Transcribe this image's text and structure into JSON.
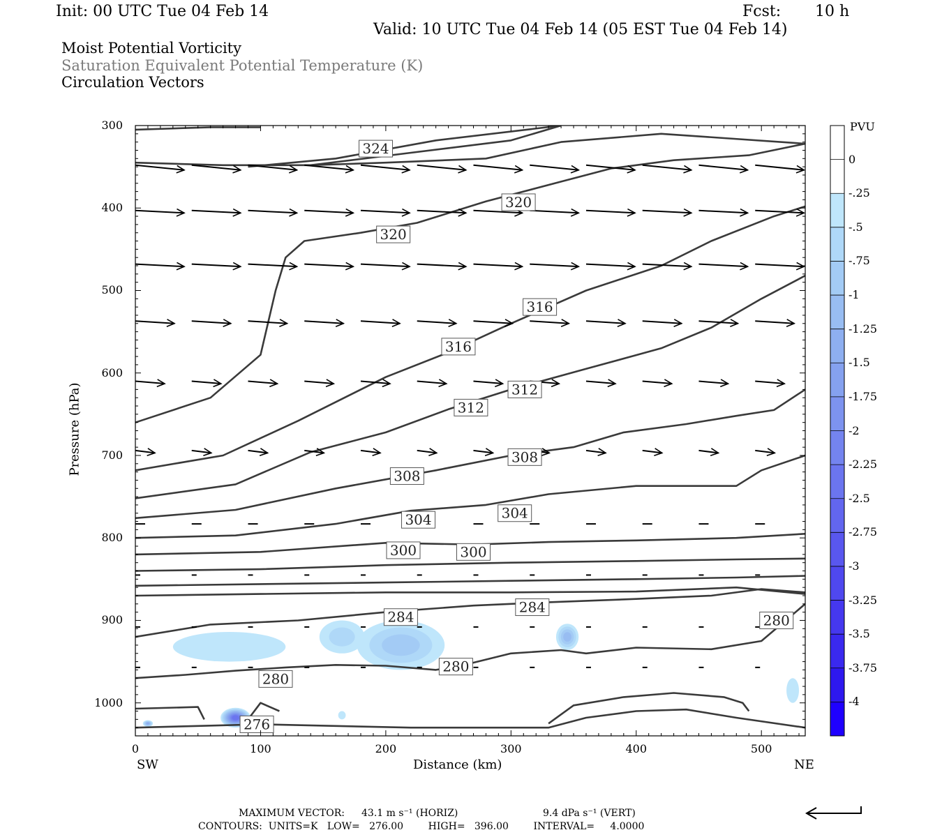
{
  "header": {
    "init": "Init: 00 UTC Tue 04 Feb 14",
    "fcst_label": "Fcst:",
    "fcst_value": "10 h",
    "valid": "Valid: 10 UTC Tue 04 Feb 14 (05 EST Tue 04 Feb 14)"
  },
  "fields": [
    "Moist Potential Vorticity",
    "Saturation Equivalent Potential Temperature (K)",
    "Circulation Vectors"
  ],
  "colors": {
    "contour": "#3a3a3a",
    "vector": "#000000",
    "field_gray": "#7a7a7a"
  },
  "chart_data": {
    "type": "cross-section",
    "xlabel": "Distance (km)",
    "ylabel": "Pressure (hPa)",
    "xlim": [
      0,
      535
    ],
    "ylim": [
      1040,
      300
    ],
    "x_ticks": [
      0,
      100,
      200,
      300,
      400,
      500
    ],
    "y_ticks": [
      300,
      400,
      500,
      600,
      700,
      800,
      900,
      1000
    ],
    "x_end_labels": [
      "SW",
      "NE"
    ],
    "colorbar": {
      "unit": "PVU",
      "levels": [
        "0",
        "-.25",
        "-.5",
        "-.75",
        "-1",
        "-1.25",
        "-1.5",
        "-1.75",
        "-2",
        "-2.25",
        "-2.5",
        "-2.75",
        "-3",
        "-3.25",
        "-3.5",
        "-3.75",
        "-4"
      ],
      "colors": [
        "#ffffff",
        "#ffffff",
        "#bfe6fb",
        "#afd8f8",
        "#a3cbf5",
        "#98bdf2",
        "#8eaff0",
        "#85a1ef",
        "#7d93ef",
        "#7484ef",
        "#6b75ef",
        "#6266ef",
        "#5957ef",
        "#4f48ef",
        "#4538ef",
        "#3a29ef",
        "#2e18ef",
        "#1f00ff"
      ]
    },
    "contour_labels": [
      {
        "text": "324",
        "x": 192,
        "p": 328
      },
      {
        "text": "320",
        "x": 306,
        "p": 393
      },
      {
        "text": "320",
        "x": 206,
        "p": 432
      },
      {
        "text": "316",
        "x": 323,
        "p": 520
      },
      {
        "text": "316",
        "x": 258,
        "p": 568
      },
      {
        "text": "312",
        "x": 311,
        "p": 620
      },
      {
        "text": "312",
        "x": 268,
        "p": 642
      },
      {
        "text": "308",
        "x": 311,
        "p": 702
      },
      {
        "text": "308",
        "x": 217,
        "p": 725
      },
      {
        "text": "304",
        "x": 303,
        "p": 770
      },
      {
        "text": "304",
        "x": 226,
        "p": 778
      },
      {
        "text": "300",
        "x": 214,
        "p": 815
      },
      {
        "text": "300",
        "x": 270,
        "p": 817
      },
      {
        "text": "284",
        "x": 317,
        "p": 884
      },
      {
        "text": "284",
        "x": 212,
        "p": 896
      },
      {
        "text": "280",
        "x": 512,
        "p": 900
      },
      {
        "text": "280",
        "x": 256,
        "p": 956
      },
      {
        "text": "280",
        "x": 112,
        "p": 971
      },
      {
        "text": "276",
        "x": 97,
        "p": 1026
      }
    ],
    "contours": [
      [
        [
          0,
          345
        ],
        [
          70,
          348
        ],
        [
          140,
          348
        ],
        [
          220,
          333
        ],
        [
          300,
          318
        ],
        [
          340,
          300
        ]
      ],
      [
        [
          90,
          350
        ],
        [
          160,
          340
        ],
        [
          240,
          318
        ],
        [
          340,
          300
        ]
      ],
      [
        [
          140,
          348
        ],
        [
          200,
          345
        ],
        [
          280,
          340
        ],
        [
          340,
          320
        ],
        [
          420,
          310
        ],
        [
          535,
          322
        ]
      ],
      [
        [
          0,
          305
        ],
        [
          60,
          302
        ],
        [
          100,
          302
        ]
      ],
      [
        [
          0,
          660
        ],
        [
          60,
          630
        ],
        [
          100,
          578
        ],
        [
          112,
          500
        ],
        [
          120,
          460
        ],
        [
          135,
          440
        ],
        [
          180,
          430
        ],
        [
          225,
          418
        ],
        [
          280,
          392
        ],
        [
          340,
          368
        ],
        [
          380,
          352
        ],
        [
          430,
          342
        ],
        [
          490,
          336
        ],
        [
          535,
          322
        ]
      ],
      [
        [
          0,
          718
        ],
        [
          70,
          700
        ],
        [
          130,
          658
        ],
        [
          200,
          605
        ],
        [
          250,
          575
        ],
        [
          300,
          540
        ],
        [
          360,
          500
        ],
        [
          420,
          470
        ],
        [
          460,
          440
        ],
        [
          510,
          410
        ],
        [
          535,
          398
        ]
      ],
      [
        [
          0,
          752
        ],
        [
          80,
          735
        ],
        [
          140,
          696
        ],
        [
          200,
          672
        ],
        [
          250,
          644
        ],
        [
          300,
          620
        ],
        [
          360,
          595
        ],
        [
          420,
          570
        ],
        [
          460,
          545
        ],
        [
          500,
          510
        ],
        [
          535,
          482
        ]
      ],
      [
        [
          0,
          776
        ],
        [
          80,
          766
        ],
        [
          160,
          740
        ],
        [
          240,
          718
        ],
        [
          300,
          700
        ],
        [
          350,
          690
        ],
        [
          390,
          672
        ],
        [
          440,
          662
        ],
        [
          480,
          652
        ],
        [
          510,
          645
        ],
        [
          535,
          620
        ]
      ],
      [
        [
          0,
          800
        ],
        [
          80,
          797
        ],
        [
          160,
          783
        ],
        [
          220,
          767
        ],
        [
          280,
          760
        ],
        [
          330,
          747
        ],
        [
          400,
          737
        ],
        [
          480,
          737
        ],
        [
          500,
          718
        ],
        [
          535,
          700
        ]
      ],
      [
        [
          0,
          820
        ],
        [
          100,
          817
        ],
        [
          200,
          806
        ],
        [
          270,
          808
        ],
        [
          330,
          805
        ],
        [
          400,
          803
        ],
        [
          480,
          800
        ],
        [
          535,
          795
        ]
      ],
      [
        [
          0,
          840
        ],
        [
          100,
          838
        ],
        [
          200,
          833
        ],
        [
          300,
          830
        ],
        [
          400,
          828
        ],
        [
          480,
          826
        ],
        [
          535,
          825
        ]
      ],
      [
        [
          0,
          858
        ],
        [
          100,
          856
        ],
        [
          200,
          854
        ],
        [
          300,
          852
        ],
        [
          400,
          850
        ],
        [
          480,
          848
        ],
        [
          535,
          846
        ]
      ],
      [
        [
          0,
          870
        ],
        [
          100,
          868
        ],
        [
          200,
          866
        ],
        [
          300,
          866
        ],
        [
          400,
          865
        ],
        [
          480,
          860
        ],
        [
          535,
          868
        ]
      ],
      [
        [
          0,
          920
        ],
        [
          60,
          905
        ],
        [
          130,
          900
        ],
        [
          200,
          890
        ],
        [
          270,
          882
        ],
        [
          330,
          878
        ],
        [
          400,
          874
        ],
        [
          460,
          870
        ],
        [
          500,
          862
        ],
        [
          535,
          866
        ]
      ],
      [
        [
          0,
          970
        ],
        [
          40,
          966
        ],
        [
          80,
          961
        ],
        [
          120,
          957
        ],
        [
          160,
          954
        ],
        [
          200,
          955
        ],
        [
          240,
          960
        ],
        [
          260,
          955
        ],
        [
          300,
          940
        ],
        [
          340,
          936
        ],
        [
          360,
          940
        ],
        [
          400,
          933
        ],
        [
          460,
          935
        ],
        [
          500,
          925
        ],
        [
          535,
          880
        ]
      ],
      [
        [
          0,
          1030
        ],
        [
          50,
          1028
        ],
        [
          100,
          1026
        ],
        [
          160,
          1028
        ],
        [
          220,
          1030
        ],
        [
          330,
          1030
        ],
        [
          360,
          1018
        ],
        [
          400,
          1010
        ],
        [
          440,
          1008
        ],
        [
          480,
          1018
        ],
        [
          535,
          1030
        ]
      ],
      [
        [
          330,
          1025
        ],
        [
          350,
          1003
        ],
        [
          390,
          993
        ],
        [
          430,
          988
        ],
        [
          470,
          993
        ],
        [
          485,
          1000
        ],
        [
          490,
          1010
        ]
      ],
      [
        [
          0,
          1007
        ],
        [
          50,
          1005
        ],
        [
          55,
          1020
        ]
      ],
      [
        [
          90,
          1020
        ],
        [
          100,
          1000
        ],
        [
          115,
          1010
        ]
      ]
    ],
    "vector_rows": [
      {
        "p": 348,
        "dx": 10,
        "dy": -1
      },
      {
        "p": 403,
        "dx": 10,
        "dy": -0.5
      },
      {
        "p": 468,
        "dx": 10,
        "dy": -0.5
      },
      {
        "p": 537,
        "dx": 8,
        "dy": -0.5
      },
      {
        "p": 610,
        "dx": 6,
        "dy": -0.5
      },
      {
        "p": 694,
        "dx": 4,
        "dy": -0.5
      },
      {
        "p": 783,
        "dx": 2,
        "dy": 0
      },
      {
        "p": 845,
        "dx": 1,
        "dy": 0
      },
      {
        "p": 908,
        "dx": 1,
        "dy": 0
      },
      {
        "p": 957,
        "dx": 1,
        "dy": 0
      }
    ],
    "pv_regions": [
      {
        "x": 75,
        "p": 932,
        "rx": 45,
        "rp": 18,
        "level": 2
      },
      {
        "x": 165,
        "p": 920,
        "rx": 18,
        "rp": 20,
        "level": 3
      },
      {
        "x": 212,
        "p": 930,
        "rx": 35,
        "rp": 30,
        "level": 4
      },
      {
        "x": 345,
        "p": 920,
        "rx": 9,
        "rp": 16,
        "level": 5
      },
      {
        "x": 525,
        "p": 985,
        "rx": 5,
        "rp": 15,
        "level": 2
      },
      {
        "x": 80,
        "p": 1018,
        "rx": 12,
        "rp": 12,
        "level": 10
      },
      {
        "x": 10,
        "p": 1025,
        "rx": 4,
        "rp": 4,
        "level": 6
      },
      {
        "x": 165,
        "p": 1015,
        "rx": 3,
        "rp": 5,
        "level": 2
      }
    ],
    "footer": {
      "max_vector_label": "MAXIMUM VECTOR:",
      "horiz": "43.1 m s⁻¹ (HORIZ)",
      "vert": "9.4 dPa s⁻¹ (VERT)",
      "contours": "CONTOURS:  UNITS=K   LOW=   276.00        HIGH=   396.00        INTERVAL=     4.0000"
    }
  }
}
